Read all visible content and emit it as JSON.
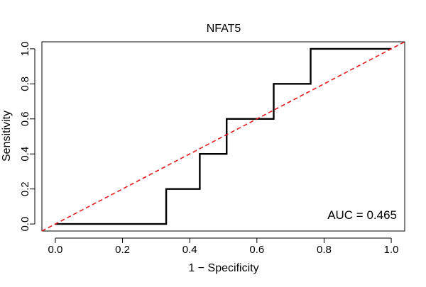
{
  "chart_data": {
    "type": "line",
    "title": "NFAT5",
    "xlabel": "1 − Specificity",
    "ylabel": "Sensitivity",
    "xlim": [
      -0.04,
      1.04
    ],
    "ylim": [
      -0.04,
      1.04
    ],
    "x_ticks": [
      0.0,
      0.2,
      0.4,
      0.6,
      0.8,
      1.0
    ],
    "x_tick_labels": [
      "0.0",
      "0.2",
      "0.4",
      "0.6",
      "0.8",
      "1.0"
    ],
    "y_ticks": [
      0.0,
      0.2,
      0.4,
      0.6,
      0.8,
      1.0
    ],
    "y_tick_labels": [
      "0.0",
      "0.2",
      "0.4",
      "0.6",
      "0.8",
      "1.0"
    ],
    "grid": false,
    "series": [
      {
        "name": "ROC curve",
        "style": "step",
        "color": "#000000",
        "x": [
          0.0,
          0.33,
          0.33,
          0.43,
          0.43,
          0.51,
          0.51,
          0.65,
          0.65,
          0.76,
          0.76,
          1.0
        ],
        "y": [
          0.0,
          0.0,
          0.2,
          0.2,
          0.4,
          0.4,
          0.6,
          0.6,
          0.8,
          0.8,
          1.0,
          1.0
        ]
      },
      {
        "name": "Reference diagonal",
        "style": "dashed",
        "color": "#e41a1c",
        "x": [
          -0.04,
          1.04
        ],
        "y": [
          -0.04,
          1.04
        ]
      }
    ],
    "annotations": [
      {
        "text": "AUC = 0.465",
        "position": "bottom-right"
      }
    ]
  }
}
